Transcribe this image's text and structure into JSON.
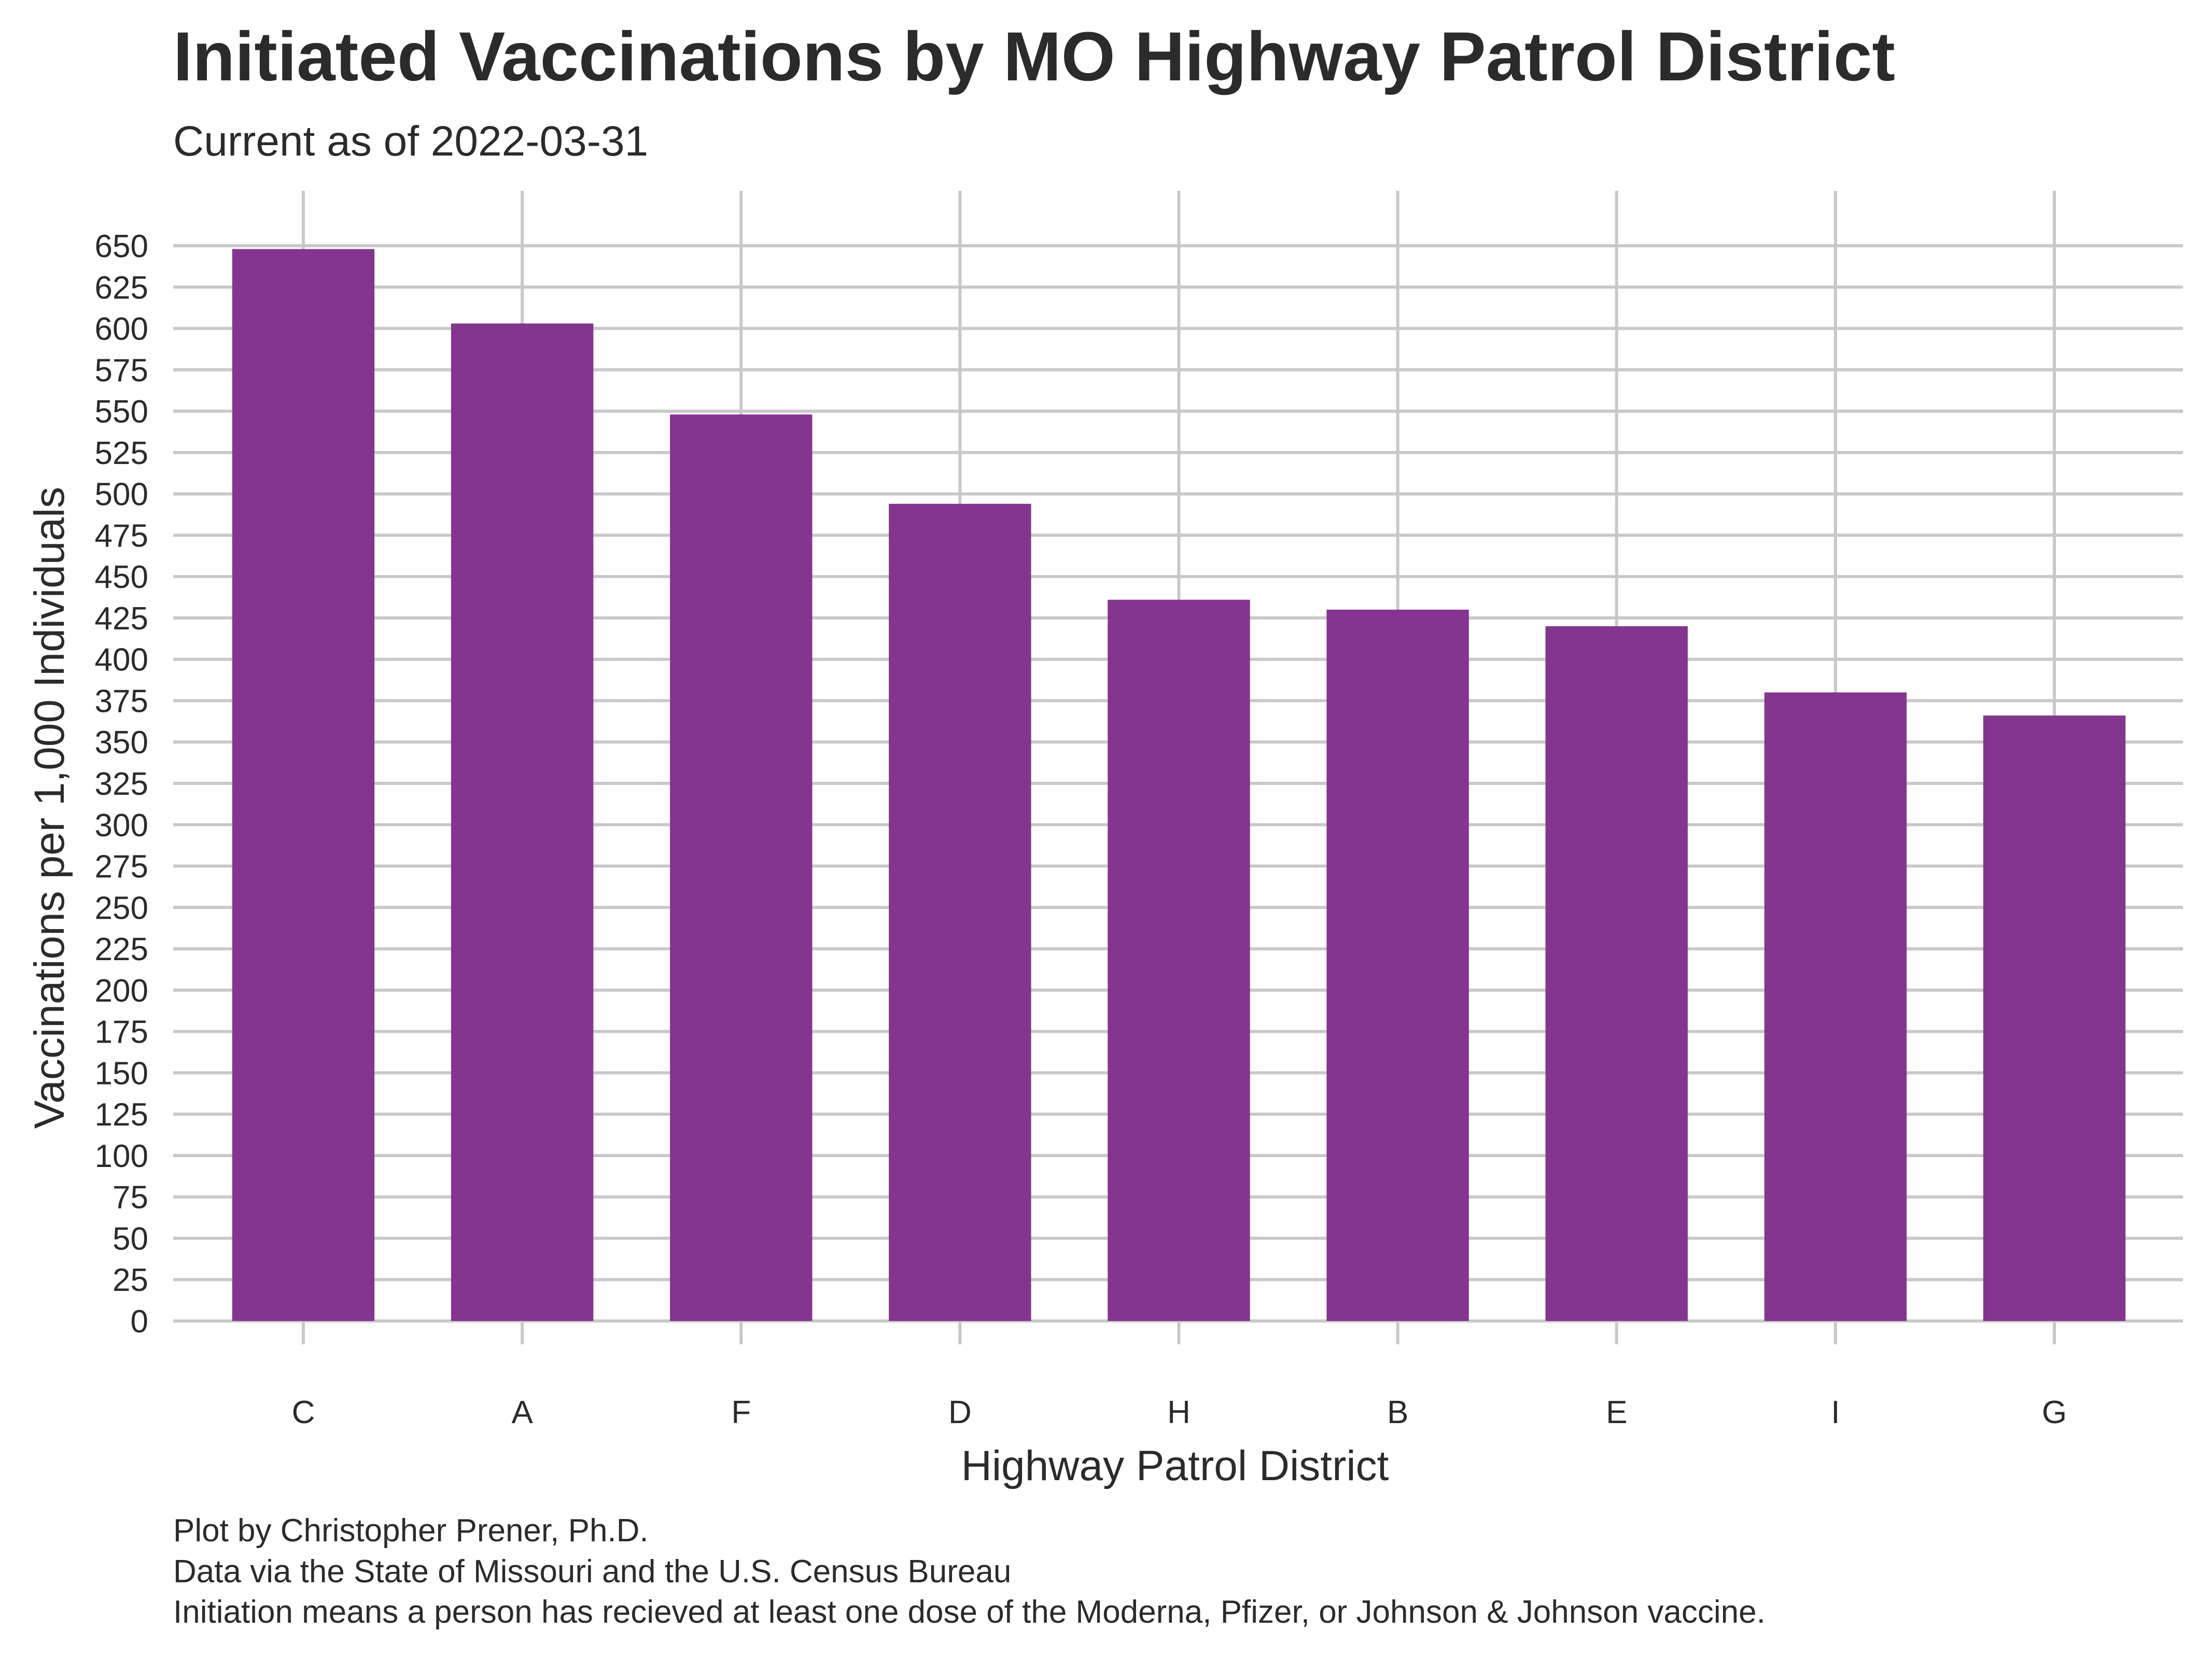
{
  "chart_data": {
    "type": "bar",
    "title": "Initiated Vaccinations by MO Highway Patrol District",
    "subtitle": "Current as of 2022-03-31",
    "xlabel": "Highway Patrol District",
    "ylabel": "Vaccinations per 1,000 Individuals",
    "categories": [
      "C",
      "A",
      "F",
      "D",
      "H",
      "B",
      "E",
      "I",
      "G"
    ],
    "values": [
      648,
      603,
      548,
      494,
      436,
      430,
      420,
      380,
      366
    ],
    "ylim": [
      0,
      650
    ],
    "yticks": [
      "0",
      "25",
      "50",
      "75",
      "100",
      "125",
      "150",
      "175",
      "200",
      "225",
      "250",
      "275",
      "300",
      "325",
      "350",
      "375",
      "400",
      "425",
      "450",
      "475",
      "500",
      "525",
      "550",
      "575",
      "600",
      "625",
      "650"
    ],
    "grid": true,
    "bar_color": "#84358f",
    "caption": [
      "Plot by Christopher Prener, Ph.D.",
      "Data via the State of Missouri and the U.S. Census Bureau",
      "Initiation means a person has recieved at least one dose of the Moderna, Pfizer, or Johnson & Johnson vaccine."
    ]
  }
}
